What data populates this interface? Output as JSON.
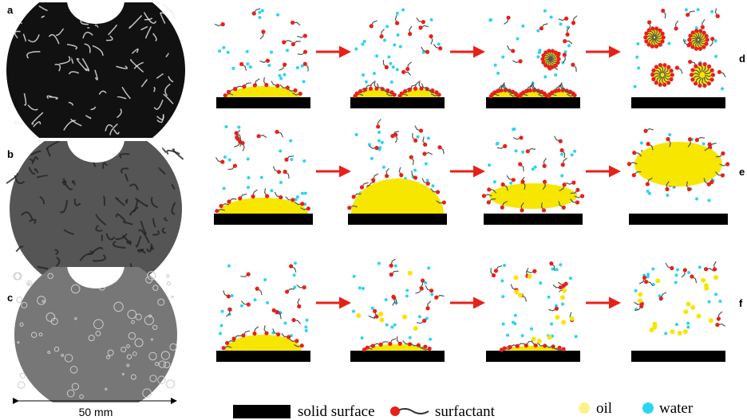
{
  "photo_labels": [
    "a",
    "b",
    "c"
  ],
  "scale_label": "50 mm",
  "diagram_labels": [
    "d",
    "e",
    "f"
  ],
  "legend": [
    "solid surface",
    "surfactant",
    "oil",
    "water"
  ]
}
